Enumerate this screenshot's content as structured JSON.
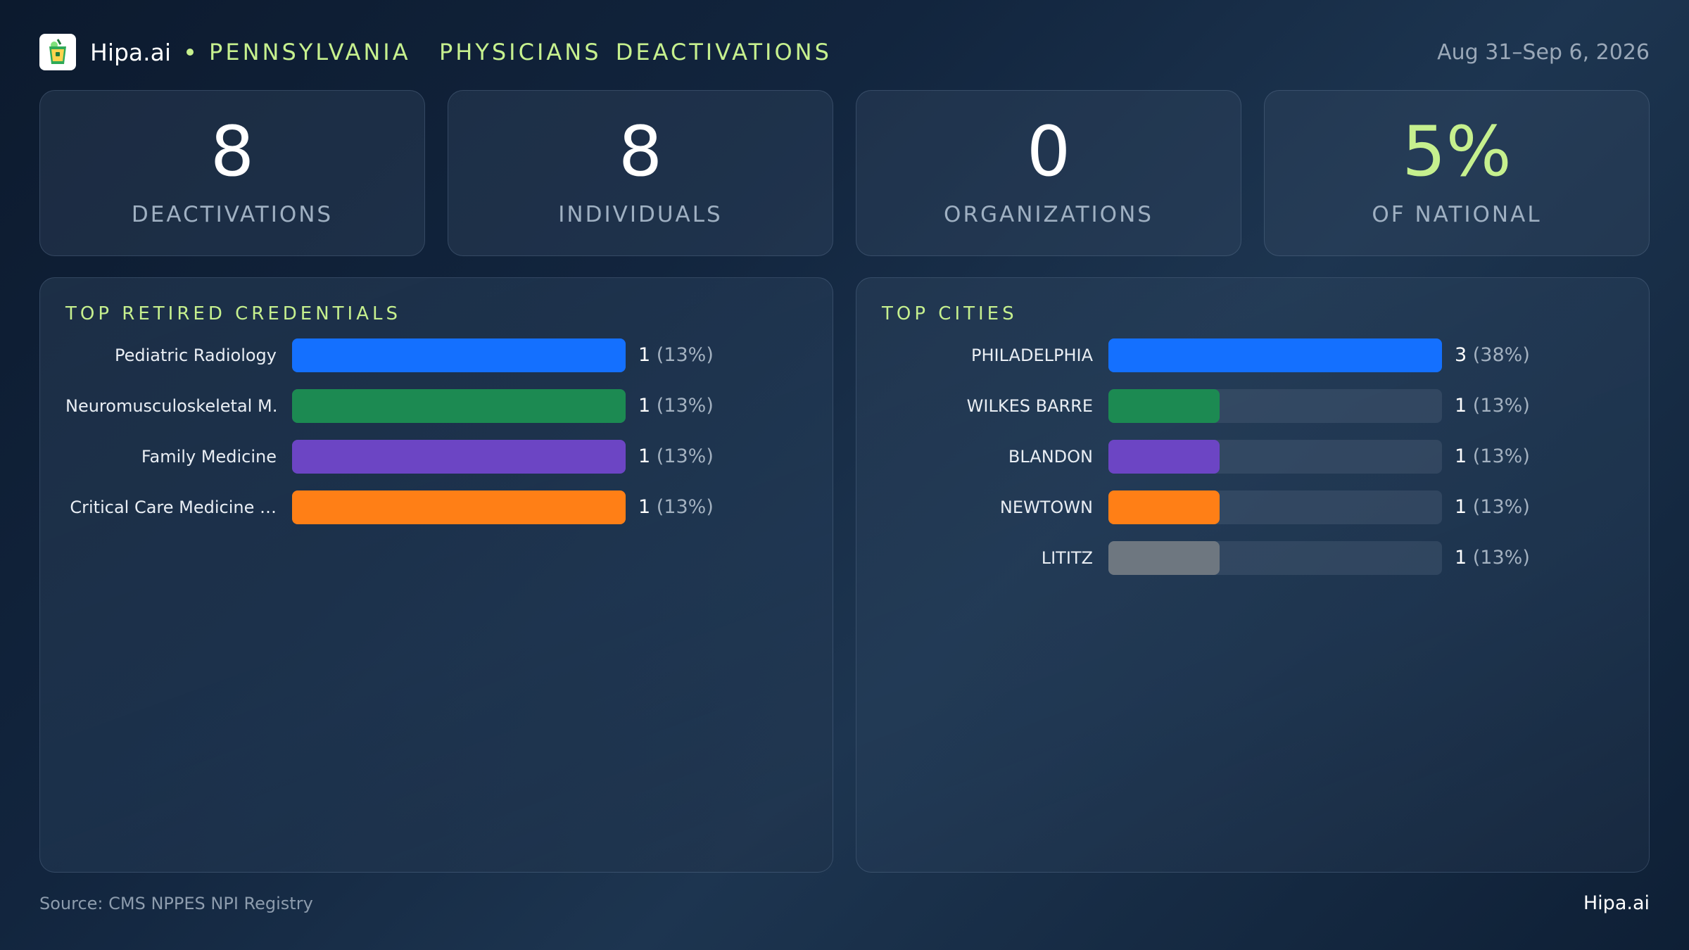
{
  "header": {
    "brand": "Hipa.ai",
    "title": "PENNSYLVANIA  PHYSICIANS DEACTIVATIONS",
    "date_range": "Aug 31–Sep 6, 2026"
  },
  "stats": [
    {
      "value": "8",
      "label": "DEACTIVATIONS"
    },
    {
      "value": "8",
      "label": "INDIVIDUALS"
    },
    {
      "value": "0",
      "label": "ORGANIZATIONS"
    },
    {
      "value": "5%",
      "label": "OF NATIONAL"
    }
  ],
  "chart_data": [
    {
      "type": "bar",
      "orientation": "horizontal",
      "title": "TOP RETIRED CREDENTIALS",
      "categories": [
        "Pediatric Radiology",
        "Neuromusculoskeletal M…",
        "Family Medicine",
        "Critical Care Medicine …"
      ],
      "values": [
        1,
        1,
        1,
        1
      ],
      "percent_labels": [
        "(13%)",
        "(13%)",
        "(13%)",
        "(13%)"
      ],
      "colors": [
        "#1470ff",
        "#1c8a52",
        "#6c45c4",
        "#ff7f16"
      ],
      "xlim": [
        0,
        1
      ]
    },
    {
      "type": "bar",
      "orientation": "horizontal",
      "title": "TOP CITIES",
      "categories": [
        "PHILADELPHIA",
        "WILKES BARRE",
        "BLANDON",
        "NEWTOWN",
        "LITITZ"
      ],
      "values": [
        3,
        1,
        1,
        1,
        1
      ],
      "percent_labels": [
        "(38%)",
        "(13%)",
        "(13%)",
        "(13%)",
        "(13%)"
      ],
      "colors": [
        "#1470ff",
        "#1c8a52",
        "#6c45c4",
        "#ff7f16",
        "#6e7780"
      ],
      "xlim": [
        0,
        3
      ]
    }
  ],
  "footer": {
    "source": "Source: CMS NPPES NPI Registry",
    "brand": "Hipa.ai"
  }
}
